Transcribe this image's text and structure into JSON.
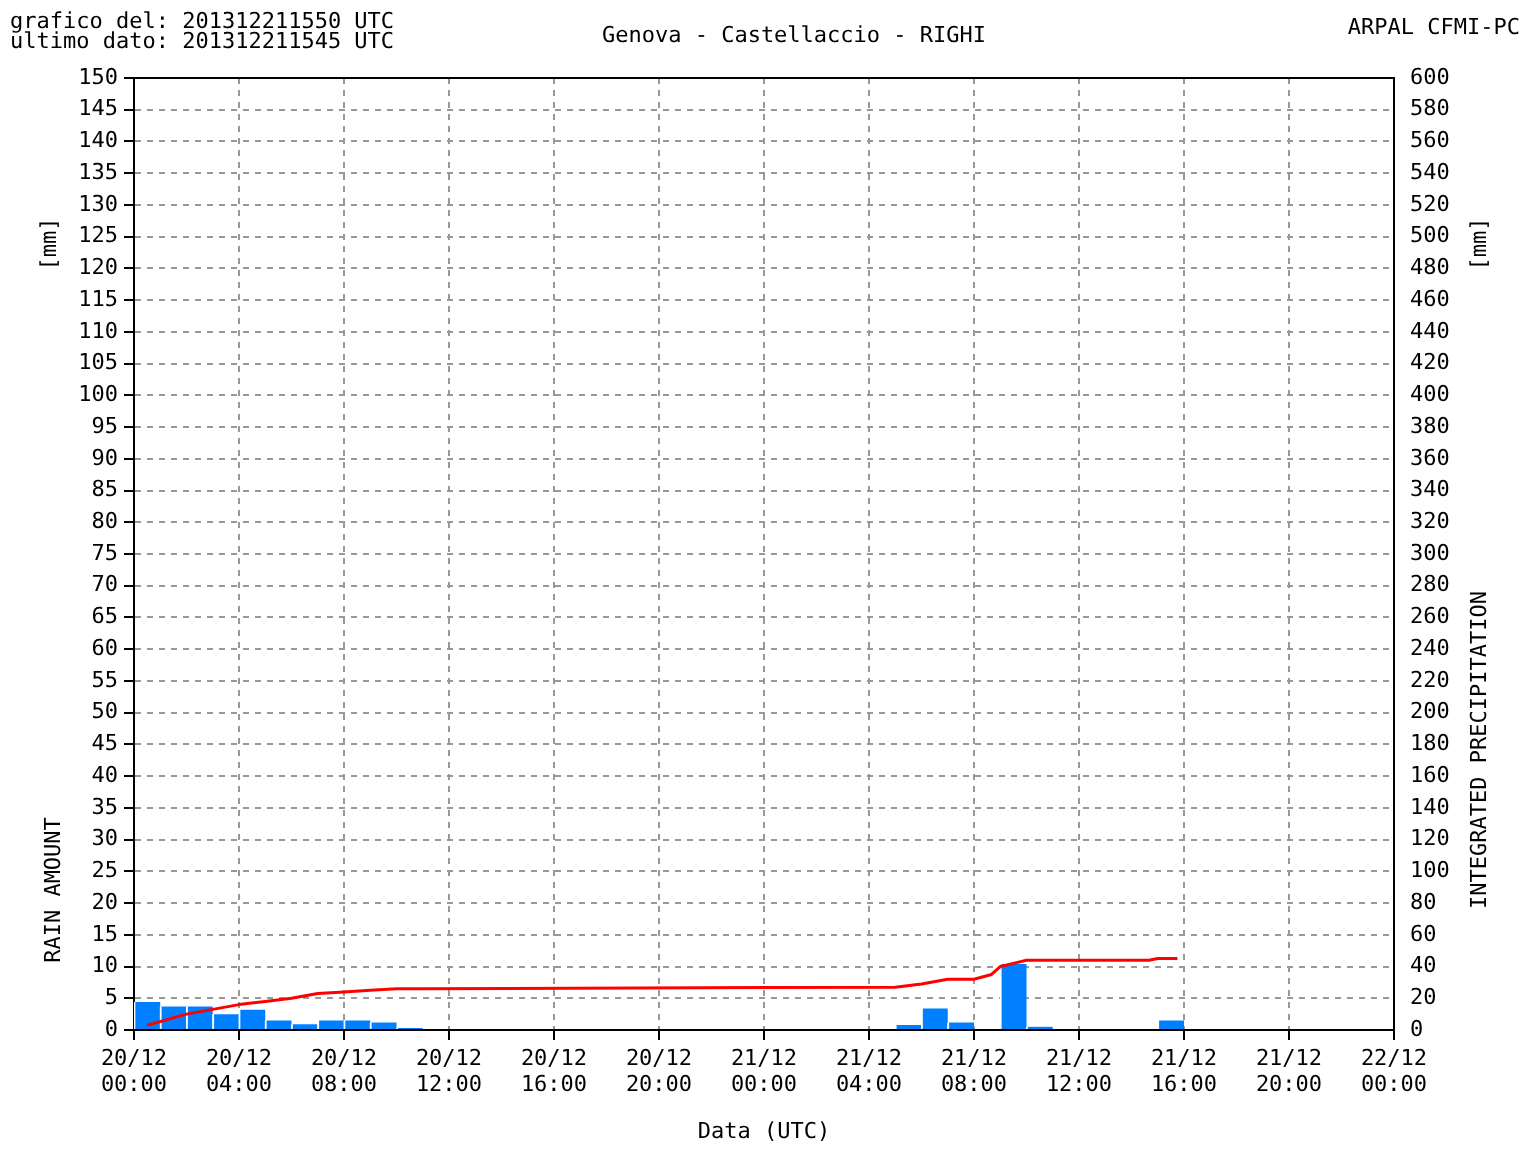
{
  "chart_data": {
    "type": "histogram",
    "title": "Genova - Castellaccio - RIGHI",
    "xlabel": "Data (UTC)",
    "ylabel": "RAIN AMOUNT",
    "y2label": "INTEGRATED PRECIPITATION",
    "annotations": [
      "grafico del: 201312211550 UTC",
      "ultimo dato: 201312211545 UTC",
      "ARPAL CFMI-PC",
      "[mm]",
      "[mm]"
    ],
    "series": [
      {
        "color": "#0080ff",
        "bins": [
          "--12-20T00:00",
          "--12-20T01:00",
          "--12-20T02:00",
          "--12-20T03:00",
          "--12-20T04:00",
          "--12-20T05:00",
          "--12-20T06:00",
          "--12-20T07:00",
          "--12-20T08:00",
          "--12-20T09:00",
          "--12-20T10:00",
          "--12-20T11:00",
          "--12-20T12:00",
          "--12-20T13:00",
          "--12-20T14:00",
          "--12-20T15:00",
          "--12-20T16:00",
          "--12-20T17:00",
          "--12-20T18:00",
          "--12-20T19:00",
          "--12-20T20:00",
          "--12-20T21:00",
          "--12-20T22:00",
          "--12-20T23:00",
          "--12-21T00:00",
          "--12-21T01:00",
          "--12-21T02:00",
          "--12-21T03:00",
          "--12-21T04:00",
          "--12-21T05:00",
          "--12-21T06:00",
          "--12-21T07:00",
          "--12-21T08:00",
          "--12-21T09:00",
          "--12-21T10:00",
          "--12-21T11:00",
          "--12-21T12:00",
          "--12-21T13:00",
          "--12-21T14:00",
          "--12-21T15:00",
          "--12-21T16:00"
        ],
        "values": [
          4.4,
          3.7,
          3.7,
          2.5,
          3.2,
          1.5,
          0.9,
          1.5,
          1.5,
          1.2,
          0.3,
          0,
          0,
          0,
          0,
          0,
          0,
          0,
          0,
          0,
          0,
          0,
          0,
          0,
          0,
          0,
          0,
          0,
          0,
          0.8,
          3.4,
          1.2,
          0,
          10.4,
          0.5,
          0,
          0,
          0,
          0,
          1.5
        ]
      },
      {
        "type": "line",
        "axis": "y2",
        "color": "#ff0000",
        "x": [
          "--12-20T00:30",
          "--12-20T02:00",
          "--12-20T03:00",
          "--12-20T04:00",
          "--12-20T05:00",
          "--12-20T06:00",
          "--12-20T07:00",
          "--12-20T08:00",
          "--12-20T09:00",
          "--12-20T10:00",
          "--12-20T11:00",
          "--12-21T05:00",
          "--12-21T06:00",
          "--12-21T07:00",
          "--12-21T08:00",
          "--12-21T08:40",
          "--12-21T09:00",
          "--12-21T09:30",
          "--12-21T10:00",
          "--12-21T14:40",
          "--12-21T15:00",
          "--12-21T15:45"
        ],
        "values": [
          3,
          10,
          13,
          16,
          18,
          20,
          23,
          24,
          25,
          26,
          26,
          27,
          29,
          32,
          32,
          35,
          40,
          42,
          44,
          44,
          45,
          45
        ]
      }
    ],
    "xlim": [
      "--12-20T00:00",
      "--12-22T00:00"
    ],
    "xticks": [
      {
        "value": "--12-20T00:00",
        "label": "20/12 00:00"
      },
      {
        "value": "--12-20T04:00",
        "label": "20/12 04:00"
      },
      {
        "value": "--12-20T08:00",
        "label": "20/12 08:00"
      },
      {
        "value": "--12-20T12:00",
        "label": "20/12 12:00"
      },
      {
        "value": "--12-20T16:00",
        "label": "20/12 16:00"
      },
      {
        "value": "--12-20T20:00",
        "label": "20/12 20:00"
      },
      {
        "value": "--12-21T00:00",
        "label": "21/12 00:00"
      },
      {
        "value": "--12-21T04:00",
        "label": "21/12 04:00"
      },
      {
        "value": "--12-21T08:00",
        "label": "21/12 08:00"
      },
      {
        "value": "--12-21T12:00",
        "label": "21/12 12:00"
      },
      {
        "value": "--12-21T16:00",
        "label": "21/12 16:00"
      },
      {
        "value": "--12-21T20:00",
        "label": "21/12 20:00"
      },
      {
        "value": "--12-22T00:00",
        "label": "22/12 00:00"
      }
    ],
    "ylim": [
      0,
      150
    ],
    "yticks": [
      0,
      5,
      10,
      15,
      20,
      25,
      30,
      35,
      40,
      45,
      50,
      55,
      60,
      65,
      70,
      75,
      80,
      85,
      90,
      95,
      100,
      105,
      110,
      115,
      120,
      125,
      130,
      135,
      140,
      145,
      150
    ],
    "y2lim": [
      0,
      600
    ],
    "y2ticks": [
      0,
      20,
      40,
      60,
      80,
      100,
      120,
      140,
      160,
      180,
      200,
      220,
      240,
      260,
      280,
      300,
      320,
      340,
      360,
      380,
      400,
      420,
      440,
      460,
      480,
      500,
      520,
      540,
      560,
      580,
      600
    ],
    "grid": true,
    "legend": false,
    "marker": "none",
    "line_style": "solid"
  }
}
